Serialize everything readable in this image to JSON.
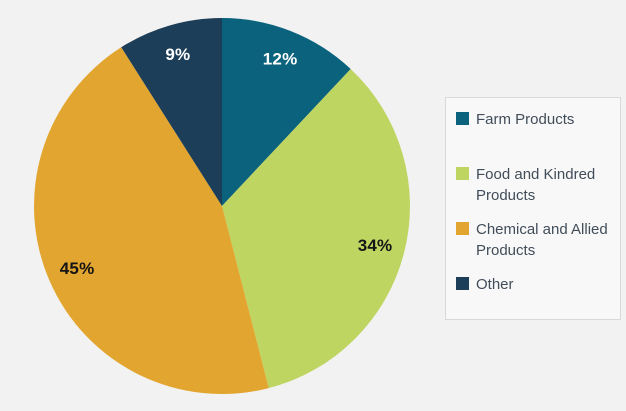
{
  "page": {
    "background_color": "#f2f2f2"
  },
  "chart_data": {
    "type": "pie",
    "title": "",
    "start_angle_deg": 0,
    "direction": "clockwise",
    "slices": [
      {
        "label": "Farm Products",
        "value": 12,
        "display": "12%",
        "color": "#0a627c",
        "label_color": "#ffffff"
      },
      {
        "label": "Food and Kindred Products",
        "value": 34,
        "display": "34%",
        "color": "#bfd561",
        "label_color": "#151515"
      },
      {
        "label": "Chemical and Allied Products",
        "value": 45,
        "display": "45%",
        "color": "#e2a52f",
        "label_color": "#151515"
      },
      {
        "label": "Other",
        "value": 9,
        "display": "9%",
        "color": "#1d3e58",
        "label_color": "#ffffff"
      }
    ],
    "legend": {
      "position": "right",
      "background_color": "#f8f8f8",
      "border_color": "#d9d9d9",
      "text_color": "#414d59",
      "entries": [
        "Farm Products",
        "Food and Kindred Products",
        "Chemical and Allied Products",
        "Other"
      ]
    }
  }
}
